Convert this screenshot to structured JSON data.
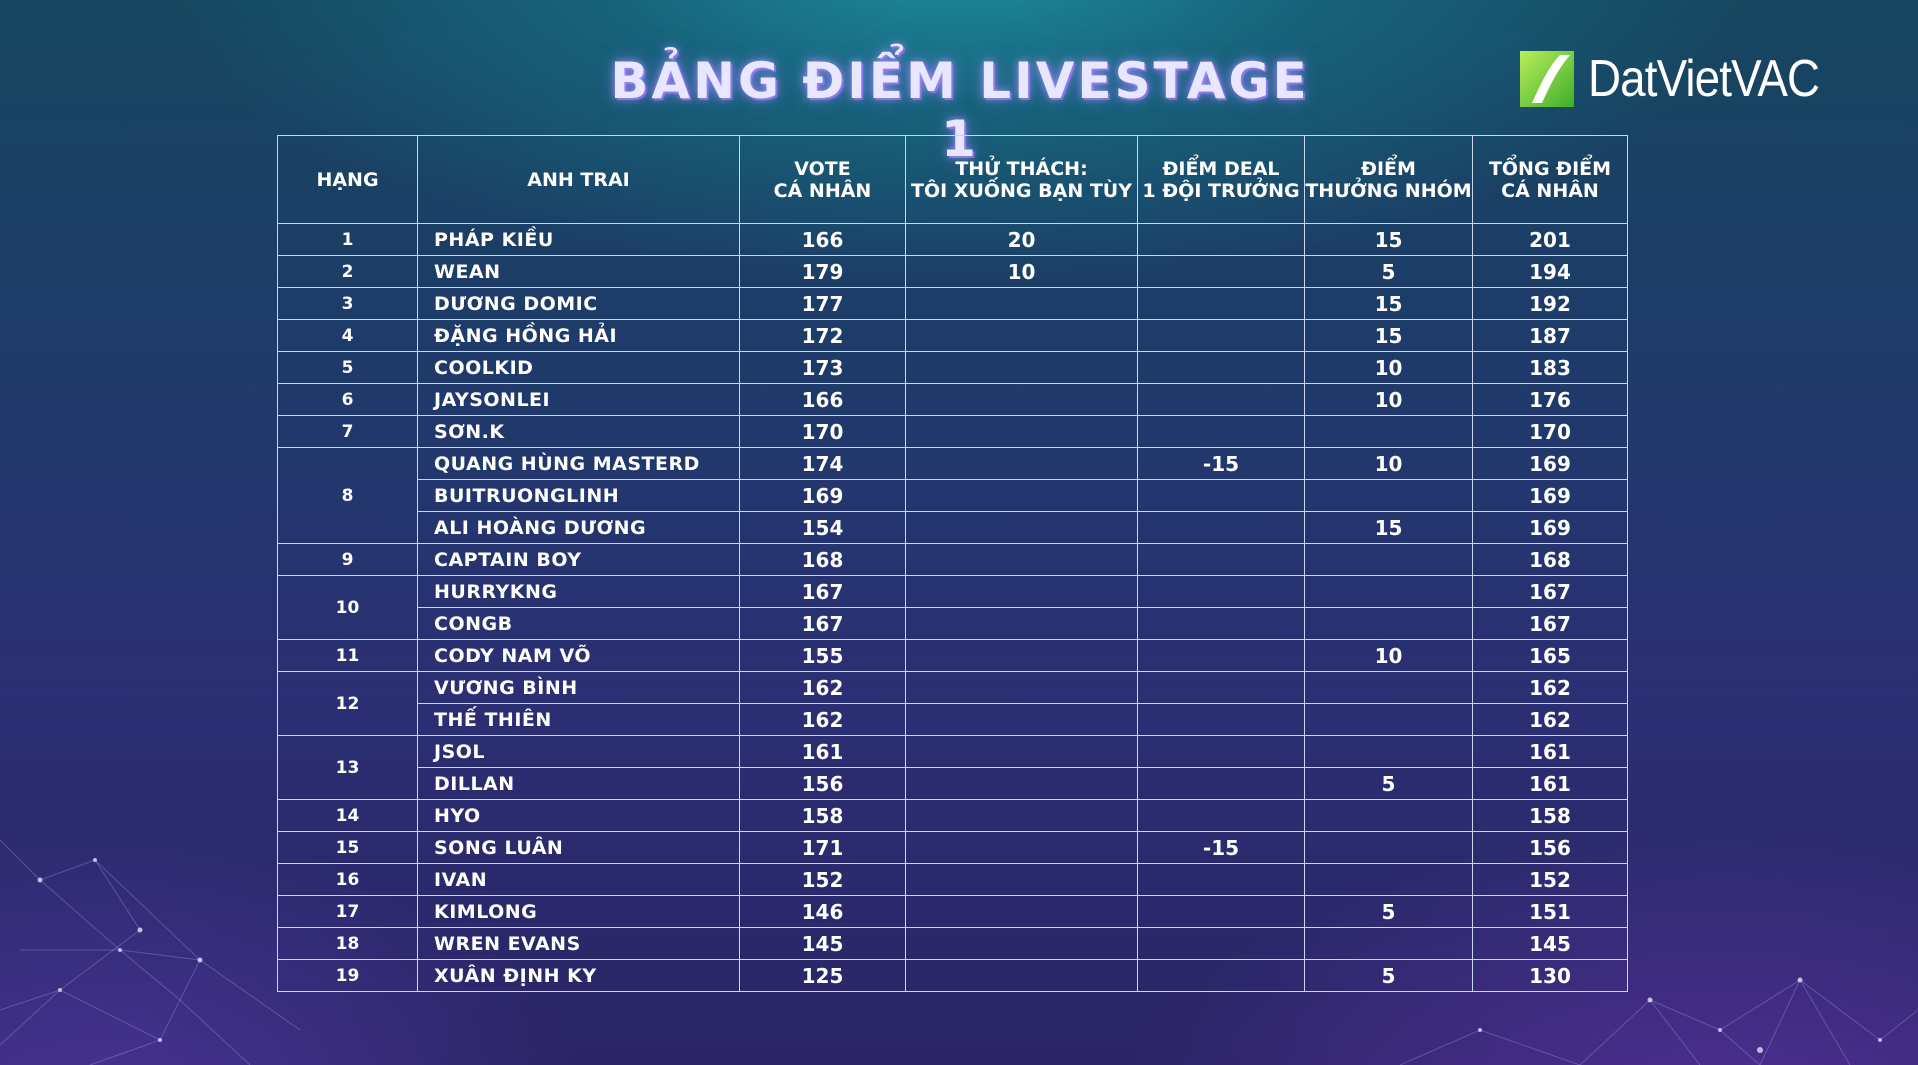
{
  "title": "BẢNG ĐIỂM LIVESTAGE 1",
  "logo": {
    "text": "DatVietVAC",
    "accent_color": "#8ed63a"
  },
  "colors": {
    "border": "#c9d6ee",
    "text": "#ffffff",
    "title_glow": "#a896ff"
  },
  "table": {
    "headers": [
      [
        "HẠNG"
      ],
      [
        "ANH TRAI"
      ],
      [
        "VOTE",
        "CÁ NHÂN"
      ],
      [
        "THỬ THÁCH:",
        "TÔI XUỐNG BẠN TÙY"
      ],
      [
        "ĐIỂM DEAL",
        "1 ĐỘI TRƯỞNG"
      ],
      [
        "ĐIỂM",
        "THƯỞNG NHÓM"
      ],
      [
        "TỔNG ĐIỂM",
        "CÁ NHÂN"
      ]
    ],
    "groups": [
      {
        "rank": "1",
        "rows": [
          {
            "name": "PHÁP KIỀU",
            "vote": "166",
            "challenge": "20",
            "deal": "",
            "bonus": "15",
            "total": "201"
          }
        ]
      },
      {
        "rank": "2",
        "rows": [
          {
            "name": "WEAN",
            "vote": "179",
            "challenge": "10",
            "deal": "",
            "bonus": "5",
            "total": "194"
          }
        ]
      },
      {
        "rank": "3",
        "rows": [
          {
            "name": "DƯƠNG DOMIC",
            "vote": "177",
            "challenge": "",
            "deal": "",
            "bonus": "15",
            "total": "192"
          }
        ]
      },
      {
        "rank": "4",
        "rows": [
          {
            "name": "ĐẶNG HỒNG HẢI",
            "vote": "172",
            "challenge": "",
            "deal": "",
            "bonus": "15",
            "total": "187"
          }
        ]
      },
      {
        "rank": "5",
        "rows": [
          {
            "name": "COOLKID",
            "vote": "173",
            "challenge": "",
            "deal": "",
            "bonus": "10",
            "total": "183"
          }
        ]
      },
      {
        "rank": "6",
        "rows": [
          {
            "name": "JAYSONLEI",
            "vote": "166",
            "challenge": "",
            "deal": "",
            "bonus": "10",
            "total": "176"
          }
        ]
      },
      {
        "rank": "7",
        "rows": [
          {
            "name": "SƠN.K",
            "vote": "170",
            "challenge": "",
            "deal": "",
            "bonus": "",
            "total": "170"
          }
        ]
      },
      {
        "rank": "8",
        "rows": [
          {
            "name": "QUANG HÙNG MASTERD",
            "vote": "174",
            "challenge": "",
            "deal": "-15",
            "bonus": "10",
            "total": "169"
          },
          {
            "name": "BUITRUONGLINH",
            "vote": "169",
            "challenge": "",
            "deal": "",
            "bonus": "",
            "total": "169"
          },
          {
            "name": "ALI HOÀNG DƯƠNG",
            "vote": "154",
            "challenge": "",
            "deal": "",
            "bonus": "15",
            "total": "169"
          }
        ]
      },
      {
        "rank": "9",
        "rows": [
          {
            "name": "CAPTAIN BOY",
            "vote": "168",
            "challenge": "",
            "deal": "",
            "bonus": "",
            "total": "168"
          }
        ]
      },
      {
        "rank": "10",
        "rows": [
          {
            "name": "HURRYKNG",
            "vote": "167",
            "challenge": "",
            "deal": "",
            "bonus": "",
            "total": "167"
          },
          {
            "name": "CONGB",
            "vote": "167",
            "challenge": "",
            "deal": "",
            "bonus": "",
            "total": "167"
          }
        ]
      },
      {
        "rank": "11",
        "rows": [
          {
            "name": "CODY NAM VÕ",
            "vote": "155",
            "challenge": "",
            "deal": "",
            "bonus": "10",
            "total": "165"
          }
        ]
      },
      {
        "rank": "12",
        "rows": [
          {
            "name": "VƯƠNG BÌNH",
            "vote": "162",
            "challenge": "",
            "deal": "",
            "bonus": "",
            "total": "162"
          },
          {
            "name": "THẾ THIÊN",
            "vote": "162",
            "challenge": "",
            "deal": "",
            "bonus": "",
            "total": "162"
          }
        ]
      },
      {
        "rank": "13",
        "rows": [
          {
            "name": "JSOL",
            "vote": "161",
            "challenge": "",
            "deal": "",
            "bonus": "",
            "total": "161"
          },
          {
            "name": "DILLAN",
            "vote": "156",
            "challenge": "",
            "deal": "",
            "bonus": "5",
            "total": "161"
          }
        ]
      },
      {
        "rank": "14",
        "rows": [
          {
            "name": "HYO",
            "vote": "158",
            "challenge": "",
            "deal": "",
            "bonus": "",
            "total": "158"
          }
        ]
      },
      {
        "rank": "15",
        "rows": [
          {
            "name": "SONG LUÂN",
            "vote": "171",
            "challenge": "",
            "deal": "-15",
            "bonus": "",
            "total": "156"
          }
        ]
      },
      {
        "rank": "16",
        "rows": [
          {
            "name": "IVAN",
            "vote": "152",
            "challenge": "",
            "deal": "",
            "bonus": "",
            "total": "152"
          }
        ]
      },
      {
        "rank": "17",
        "rows": [
          {
            "name": "KIMLONG",
            "vote": "146",
            "challenge": "",
            "deal": "",
            "bonus": "5",
            "total": "151"
          }
        ]
      },
      {
        "rank": "18",
        "rows": [
          {
            "name": "WREN EVANS",
            "vote": "145",
            "challenge": "",
            "deal": "",
            "bonus": "",
            "total": "145"
          }
        ]
      },
      {
        "rank": "19",
        "rows": [
          {
            "name": "XUÂN ĐỊNH KY",
            "vote": "125",
            "challenge": "",
            "deal": "",
            "bonus": "5",
            "total": "130"
          }
        ]
      }
    ]
  }
}
